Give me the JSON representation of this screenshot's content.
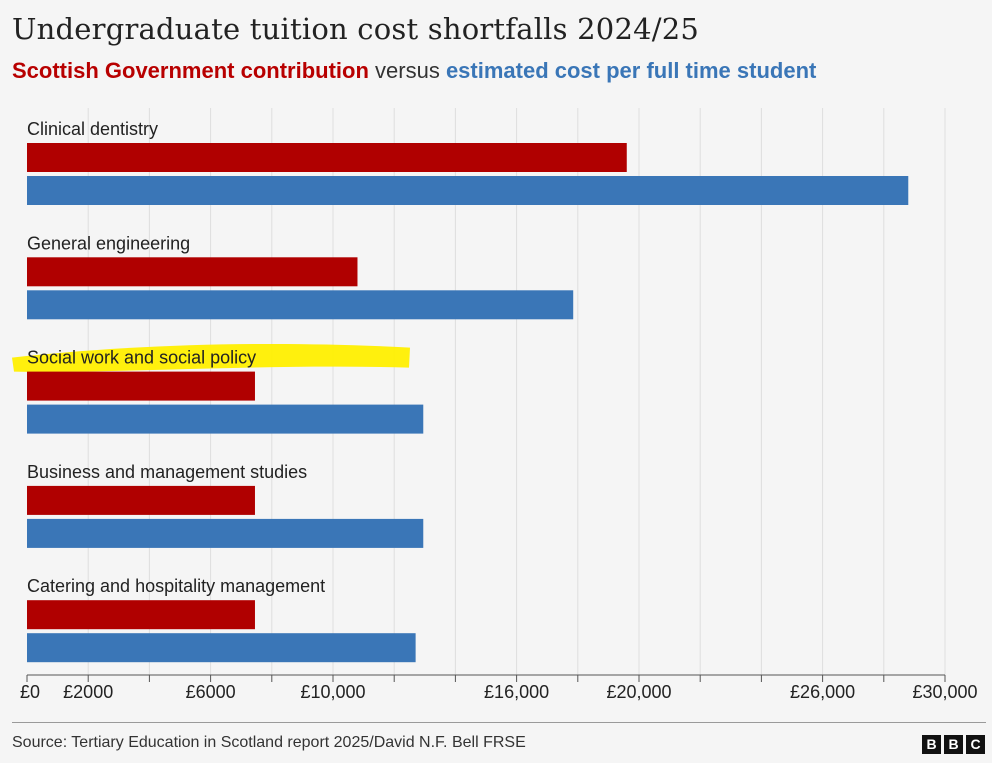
{
  "title": "Undergraduate tuition cost shortfalls 2024/25",
  "subtitle": {
    "part1": "Scottish Government contribution",
    "part2": " versus ",
    "part3": "estimated cost per full time student"
  },
  "source": "Source: Tertiary Education in Scotland report 2025/David N.F. Bell FRSE",
  "logo": [
    "B",
    "B",
    "C"
  ],
  "colors": {
    "government": "#b00000",
    "cost": "#3a76b7",
    "highlight": "#ffef00",
    "grid": "#dedede",
    "axis": "#555555"
  },
  "chart_data": {
    "type": "bar",
    "orientation": "horizontal",
    "categories": [
      "Clinical dentistry",
      "General engineering",
      "Social work and social policy",
      "Business and management studies",
      "Catering and hospitality management"
    ],
    "series": [
      {
        "name": "Scottish Government contribution",
        "values": [
          19600,
          10800,
          7450,
          7450,
          7450
        ]
      },
      {
        "name": "estimated cost per full time student",
        "values": [
          28800,
          17850,
          12950,
          12950,
          12700
        ]
      }
    ],
    "highlighted_category": "Social work and social policy",
    "xlim": [
      0,
      30000
    ],
    "xticks": [
      {
        "value": 0,
        "label": "£0"
      },
      {
        "value": 2000,
        "label": "£2000"
      },
      {
        "value": 4000,
        "label": ""
      },
      {
        "value": 6000,
        "label": "£6000"
      },
      {
        "value": 8000,
        "label": ""
      },
      {
        "value": 10000,
        "label": "£10,000"
      },
      {
        "value": 12000,
        "label": ""
      },
      {
        "value": 14000,
        "label": ""
      },
      {
        "value": 16000,
        "label": "£16,000"
      },
      {
        "value": 18000,
        "label": ""
      },
      {
        "value": 20000,
        "label": "£20,000"
      },
      {
        "value": 22000,
        "label": ""
      },
      {
        "value": 24000,
        "label": ""
      },
      {
        "value": 26000,
        "label": "£26,000"
      },
      {
        "value": 28000,
        "label": ""
      },
      {
        "value": 30000,
        "label": "£30,000"
      }
    ],
    "grid": true,
    "legend": "subtitle"
  }
}
